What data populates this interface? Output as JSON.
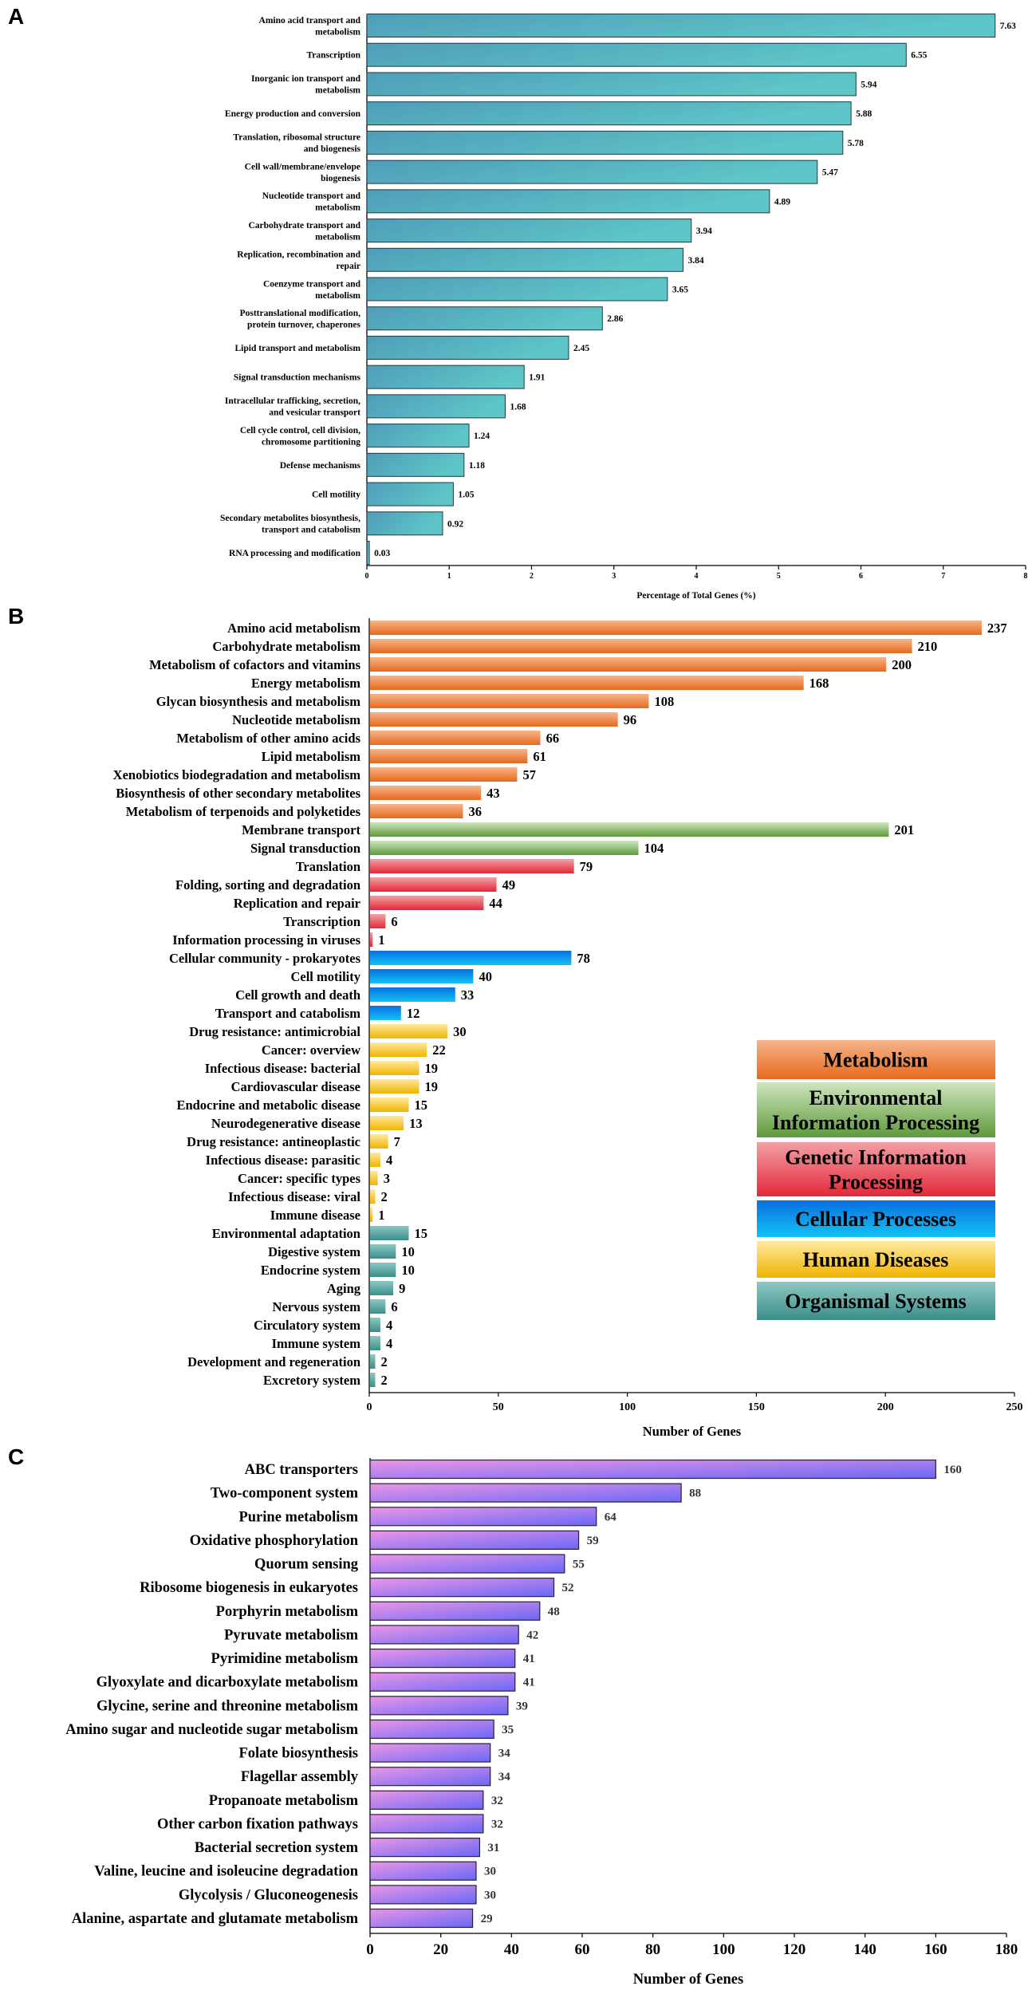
{
  "panels": [
    "A",
    "B",
    "C"
  ],
  "chart_data": [
    {
      "type": "bar",
      "orientation": "horizontal",
      "title": "",
      "xlabel": "Percentage of Total Genes (%)",
      "ylabel": "",
      "xlim": [
        0,
        8
      ],
      "xticks": [
        "0",
        "1",
        "2",
        "3",
        "4",
        "5",
        "6",
        "7",
        "8"
      ],
      "labels": [
        [
          "Amino acid transport and",
          "metabolism"
        ],
        [
          "Transcription"
        ],
        [
          "Inorganic ion transport and",
          "metabolism"
        ],
        [
          "Energy production and conversion"
        ],
        [
          "Translation, ribosomal structure",
          "and biogenesis"
        ],
        [
          "Cell wall/membrane/envelope",
          "biogenesis"
        ],
        [
          "Nucleotide transport and",
          "metabolism"
        ],
        [
          "Carbohydrate transport and",
          "metabolism"
        ],
        [
          "Replication, recombination and",
          "repair"
        ],
        [
          "Coenzyme transport and",
          "metabolism"
        ],
        [
          "Posttranslational modification,",
          "protein turnover, chaperones"
        ],
        [
          "Lipid transport and metabolism"
        ],
        [
          "Signal transduction mechanisms"
        ],
        [
          "Intracellular trafficking, secretion,",
          "and vesicular transport"
        ],
        [
          "Cell cycle control, cell division,",
          "chromosome partitioning"
        ],
        [
          "Defense mechanisms"
        ],
        [
          "Cell motility"
        ],
        [
          "Secondary metabolites biosynthesis,",
          "transport and catabolism"
        ],
        [
          "RNA processing and modification"
        ]
      ],
      "values": [
        7.63,
        6.55,
        5.94,
        5.88,
        5.78,
        5.47,
        4.89,
        3.94,
        3.84,
        3.65,
        2.86,
        2.45,
        1.91,
        1.68,
        1.24,
        1.18,
        1.05,
        0.92,
        0.03
      ],
      "value_labels": [
        "7.63",
        "6.55",
        "5.94",
        "5.88",
        "5.78",
        "5.47",
        "4.89",
        "3.94",
        "3.84",
        "3.65",
        "2.86",
        "2.45",
        "1.91",
        "1.68",
        "1.24",
        "1.18",
        "1.05",
        "0.92",
        "0.03"
      ],
      "colors": {
        "left": "#4f9db8",
        "right": "#5ec6c8"
      }
    },
    {
      "type": "bar",
      "orientation": "horizontal",
      "title": "",
      "xlabel": "Number of Genes",
      "ylabel": "",
      "xlim": [
        0,
        250
      ],
      "xticks": [
        "0",
        "50",
        "100",
        "150",
        "200",
        "250"
      ],
      "labels": [
        "Amino acid metabolism",
        "Carbohydrate metabolism",
        "Metabolism of cofactors and vitamins",
        "Energy metabolism",
        "Glycan biosynthesis and metabolism",
        "Nucleotide metabolism",
        "Metabolism of other amino acids",
        "Lipid metabolism",
        "Xenobiotics biodegradation and metabolism",
        "Biosynthesis of other secondary metabolites",
        "Metabolism of terpenoids and polyketides",
        "Membrane transport",
        "Signal transduction",
        "Translation",
        "Folding, sorting and degradation",
        "Replication and repair",
        "Transcription",
        "Information processing in viruses",
        "Cellular community - prokaryotes",
        "Cell motility",
        "Cell growth and death",
        "Transport and catabolism",
        "Drug resistance: antimicrobial",
        "Cancer: overview",
        "Infectious disease: bacterial",
        "Cardiovascular disease",
        "Endocrine and metabolic disease",
        "Neurodegenerative disease",
        "Drug resistance: antineoplastic",
        "Infectious disease: parasitic",
        "Cancer: specific types",
        "Infectious disease: viral",
        "Immune disease",
        "Environmental adaptation",
        "Digestive system",
        "Endocrine system",
        "Aging",
        "Nervous system",
        "Circulatory system",
        "Immune system",
        "Development and regeneration",
        "Excretory system"
      ],
      "values": [
        237,
        210,
        200,
        168,
        108,
        96,
        66,
        61,
        57,
        43,
        36,
        201,
        104,
        79,
        49,
        44,
        6,
        1,
        78,
        40,
        33,
        12,
        30,
        22,
        19,
        19,
        15,
        13,
        7,
        4,
        3,
        2,
        1,
        15,
        10,
        10,
        9,
        6,
        4,
        4,
        2,
        2
      ],
      "value_labels": [
        "237",
        "210",
        "200",
        "168",
        "108",
        "96",
        "66",
        "61",
        "57",
        "43",
        "36",
        "201",
        "104",
        "79",
        "49",
        "44",
        "6",
        "1",
        "78",
        "40",
        "33",
        "12",
        "30",
        "22",
        "19",
        "19",
        "15",
        "13",
        "7",
        "4",
        "3",
        "2",
        "1",
        "15",
        "10",
        "10",
        "9",
        "6",
        "4",
        "4",
        "2",
        "2"
      ],
      "groups": [
        0,
        0,
        0,
        0,
        0,
        0,
        0,
        0,
        0,
        0,
        0,
        1,
        1,
        2,
        2,
        2,
        2,
        2,
        3,
        3,
        3,
        3,
        4,
        4,
        4,
        4,
        4,
        4,
        4,
        4,
        4,
        4,
        4,
        5,
        5,
        5,
        5,
        5,
        5,
        5,
        5,
        5
      ],
      "legend": [
        {
          "lines": [
            "Metabolism"
          ],
          "light": "#f6b48a",
          "dark": "#e66a1e"
        },
        {
          "lines": [
            "Environmental",
            "Information Processing"
          ],
          "light": "#cfe6bf",
          "dark": "#5e9a3a"
        },
        {
          "lines": [
            "Genetic Information",
            "Processing"
          ],
          "light": "#f3a0a6",
          "dark": "#e32838"
        },
        {
          "lines": [
            "Cellular Processes"
          ],
          "light": "#0a6fe0",
          "dark": "#12c2f5"
        },
        {
          "lines": [
            "Human Diseases"
          ],
          "light": "#ffe9a0",
          "dark": "#f0b400"
        },
        {
          "lines": [
            "Organismal Systems"
          ],
          "light": "#8ec8c4",
          "dark": "#3b8e8a"
        }
      ],
      "legend_placement": "bottom-right"
    },
    {
      "type": "bar",
      "orientation": "horizontal",
      "title": "",
      "xlabel": "Number of Genes",
      "ylabel": "",
      "xlim": [
        0,
        180
      ],
      "xticks": [
        "0",
        "20",
        "40",
        "60",
        "80",
        "100",
        "120",
        "140",
        "160",
        "180"
      ],
      "labels": [
        "ABC transporters",
        "Two-component system",
        "Purine metabolism",
        "Oxidative phosphorylation",
        "Quorum sensing",
        "Ribosome biogenesis in eukaryotes",
        "Porphyrin metabolism",
        "Pyruvate metabolism",
        "Pyrimidine metabolism",
        "Glyoxylate and dicarboxylate metabolism",
        "Glycine, serine and threonine metabolism",
        "Amino sugar and nucleotide sugar metabolism",
        "Folate biosynthesis",
        "Flagellar assembly",
        "Propanoate metabolism",
        "Other carbon fixation pathways",
        "Bacterial secretion system",
        "Valine, leucine and isoleucine degradation",
        "Glycolysis / Gluconeogenesis",
        "Alanine, aspartate and glutamate metabolism"
      ],
      "values": [
        160,
        88,
        64,
        59,
        55,
        52,
        48,
        42,
        41,
        41,
        39,
        35,
        34,
        34,
        32,
        32,
        31,
        30,
        30,
        29
      ],
      "value_labels": [
        "160",
        "88",
        "64",
        "59",
        "55",
        "52",
        "48",
        "42",
        "41",
        "41",
        "39",
        "35",
        "34",
        "34",
        "32",
        "32",
        "31",
        "30",
        "30",
        "29"
      ],
      "colors": {
        "left": "#ea96e6",
        "right": "#6a68f6"
      }
    }
  ]
}
